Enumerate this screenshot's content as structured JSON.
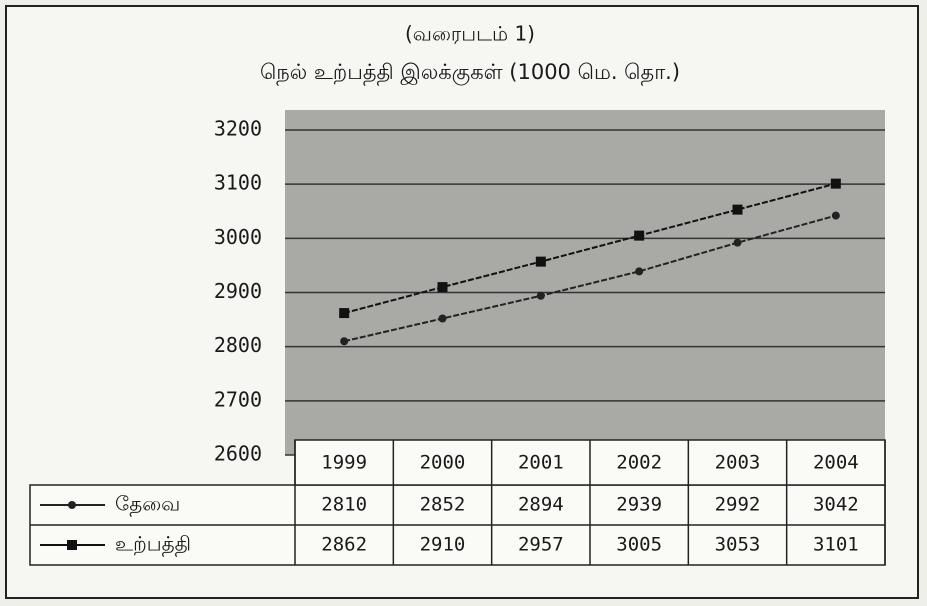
{
  "chart_data": {
    "type": "line",
    "subtitle": "(வரைபடம் 1)",
    "title": "நெல் உற்பத்தி இலக்குகள் (1000 மெ. தொ.)",
    "categories": [
      "1999",
      "2000",
      "2001",
      "2002",
      "2003",
      "2004"
    ],
    "series": [
      {
        "name": "தேவை",
        "color": "#222222",
        "marker": "plus",
        "values": [
          2810,
          2852,
          2894,
          2939,
          2992,
          3042
        ]
      },
      {
        "name": "உற்பத்தி",
        "color": "#111111",
        "marker": "square",
        "values": [
          2862,
          2910,
          2957,
          3005,
          3053,
          3101
        ]
      }
    ],
    "ylim": [
      2600,
      3200
    ],
    "yticks": [
      2600,
      2700,
      2800,
      2900,
      3000,
      3100,
      3200
    ],
    "grid": true
  }
}
